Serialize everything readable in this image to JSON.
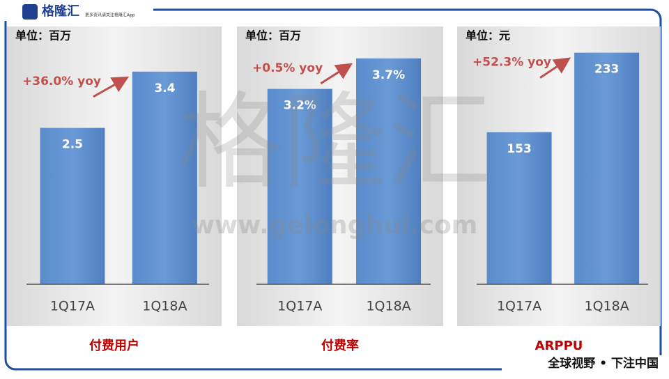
{
  "header": {
    "logo": "格隆汇",
    "tagline": "更多资讯请关注格隆汇App"
  },
  "watermark": {
    "name": "格隆汇",
    "url": "www.gelonghui.com"
  },
  "footer": "全球视野 • 下注中国",
  "chart_data": [
    {
      "type": "bar",
      "subtitle": "单位：百万",
      "title": "付费用户",
      "annotation": "+36.0% yoy",
      "categories": [
        "1Q17A",
        "1Q18A"
      ],
      "values": [
        2.5,
        3.4
      ],
      "color": "#4f81bd",
      "ylim": [
        0,
        4.1
      ]
    },
    {
      "type": "bar",
      "subtitle": "单位：百万",
      "title": "付费率",
      "annotation": "+0.5% yoy",
      "categories": [
        "1Q17A",
        "1Q18A"
      ],
      "values": [
        3.2,
        3.7
      ],
      "value_labels": [
        "3.2%",
        "3.7%"
      ],
      "color": "#4f81bd",
      "ylim": [
        0,
        4.2
      ]
    },
    {
      "type": "bar",
      "subtitle": "单位：元",
      "title": "ARPPU",
      "annotation": "+52.3% yoy",
      "categories": [
        "1Q17A",
        "1Q18A"
      ],
      "values": [
        153,
        233
      ],
      "color": "#4f81bd",
      "ylim": [
        0,
        258
      ]
    }
  ]
}
